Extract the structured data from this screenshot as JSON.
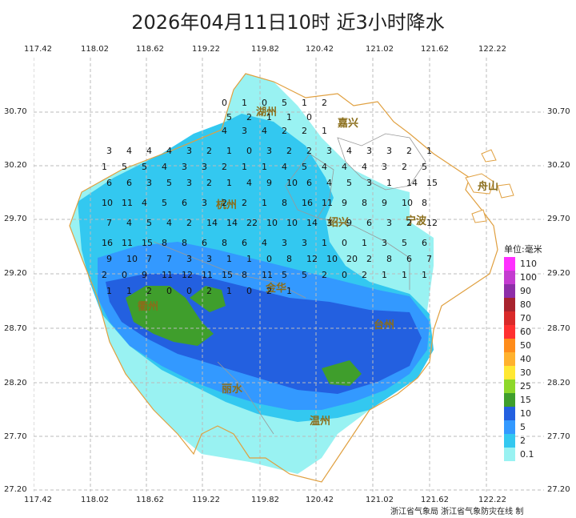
{
  "title": "2026年04月11日10时  近3小时降水",
  "lon_ticks": [
    "117.42",
    "118.02",
    "118.62",
    "119.22",
    "119.82",
    "120.42",
    "121.02",
    "121.62",
    "122.22"
  ],
  "lat_ticks": [
    "30.70",
    "30.20",
    "29.70",
    "29.20",
    "28.70",
    "28.20",
    "27.70",
    "27.20"
  ],
  "cities": [
    {
      "name": "湖州",
      "color": "#8a6d1a"
    },
    {
      "name": "嘉兴",
      "color": "#8a6d1a"
    },
    {
      "name": "杭州",
      "color": "#8a6d1a"
    },
    {
      "name": "绍兴",
      "color": "#8a6d1a"
    },
    {
      "name": "宁波",
      "color": "#8a6d1a"
    },
    {
      "name": "舟山",
      "color": "#8a6d1a"
    },
    {
      "name": "金华",
      "color": "#8a6d1a"
    },
    {
      "name": "台州",
      "color": "#8a6d1a"
    },
    {
      "name": "丽水",
      "color": "#8a6d1a"
    },
    {
      "name": "温州",
      "color": "#8a6d1a"
    },
    {
      "name": "衢州",
      "color": "#8a6d1a"
    }
  ],
  "legend": {
    "title": "单位:毫米",
    "items": [
      {
        "label": "110",
        "color": "#ff30ff"
      },
      {
        "label": "100",
        "color": "#c43bd0"
      },
      {
        "label": "90",
        "color": "#8e2ea8"
      },
      {
        "label": "80",
        "color": "#a8232e"
      },
      {
        "label": "70",
        "color": "#d92a2a"
      },
      {
        "label": "60",
        "color": "#ff3030"
      },
      {
        "label": "50",
        "color": "#ff8c1a"
      },
      {
        "label": "40",
        "color": "#ffb22e"
      },
      {
        "label": "30",
        "color": "#ffe833"
      },
      {
        "label": "25",
        "color": "#8ed82a"
      },
      {
        "label": "15",
        "color": "#3f9e2c"
      },
      {
        "label": "10",
        "color": "#2360e0"
      },
      {
        "label": "5",
        "color": "#3399ff"
      },
      {
        "label": "2",
        "color": "#33c8f0"
      },
      {
        "label": "0.1",
        "color": "#99f2f2"
      }
    ]
  },
  "station_values": [
    "0",
    "1",
    "0",
    "5",
    "1",
    "2",
    "5",
    "2",
    "1",
    "1",
    "0",
    "4",
    "3",
    "4",
    "2",
    "2",
    "1",
    "3",
    "4",
    "4",
    "4",
    "3",
    "2",
    "1",
    "0",
    "3",
    "2",
    "2",
    "3",
    "4",
    "3",
    "3",
    "2",
    "1",
    "1",
    "5",
    "5",
    "4",
    "3",
    "3",
    "2",
    "1",
    "1",
    "4",
    "5",
    "4",
    "4",
    "4",
    "3",
    "2",
    "5",
    "6",
    "6",
    "3",
    "5",
    "3",
    "2",
    "1",
    "4",
    "9",
    "10",
    "6",
    "4",
    "5",
    "3",
    "1",
    "14",
    "15",
    "10",
    "11",
    "4",
    "5",
    "6",
    "3",
    "2",
    "2",
    "1",
    "8",
    "16",
    "11",
    "9",
    "8",
    "9",
    "10",
    "8",
    "7",
    "4",
    "5",
    "4",
    "2",
    "14",
    "14",
    "22",
    "10",
    "10",
    "14",
    "3",
    "9",
    "6",
    "3",
    "2",
    "12",
    "16",
    "11",
    "15",
    "8",
    "8",
    "6",
    "8",
    "6",
    "4",
    "3",
    "3",
    "1",
    "0",
    "1",
    "3",
    "5",
    "6",
    "9",
    "10",
    "7",
    "7",
    "3",
    "3",
    "1",
    "1",
    "0",
    "8",
    "12",
    "10",
    "20",
    "2",
    "8",
    "6",
    "7",
    "2",
    "0",
    "9",
    "11",
    "12",
    "11",
    "15",
    "8",
    "11",
    "5",
    "5",
    "2",
    "0",
    "2",
    "1",
    "1",
    "1",
    "1",
    "1",
    "2",
    "0",
    "0",
    "2",
    "1",
    "0",
    "2",
    "1"
  ],
  "credit": "浙江省气象局 浙江省气象防灾在线 制"
}
